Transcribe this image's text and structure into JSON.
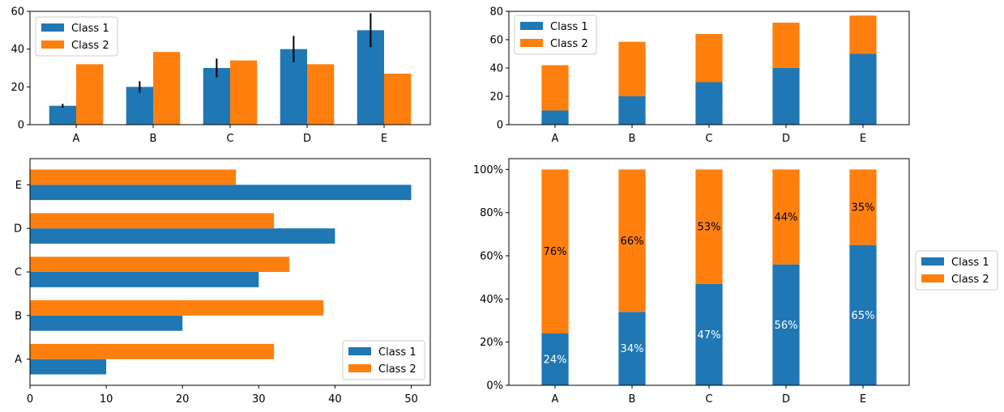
{
  "colors": {
    "class1": "#1f77b4",
    "class2": "#ff7f0e"
  },
  "chart_data": [
    {
      "id": "grouped",
      "type": "bar",
      "categories": [
        "A",
        "B",
        "C",
        "D",
        "E"
      ],
      "series": [
        {
          "name": "Class 1",
          "values": [
            10,
            20,
            30,
            40,
            50
          ],
          "error": [
            1,
            3,
            5,
            7,
            9
          ]
        },
        {
          "name": "Class 2",
          "values": [
            32,
            38.5,
            34,
            32,
            27
          ]
        }
      ],
      "ylim": [
        0,
        60
      ],
      "yticks": [
        0,
        20,
        40,
        60
      ],
      "legend": "upper-left"
    },
    {
      "id": "stacked",
      "type": "bar",
      "categories": [
        "A",
        "B",
        "C",
        "D",
        "E"
      ],
      "series": [
        {
          "name": "Class 1",
          "values": [
            10,
            20,
            30,
            40,
            50
          ]
        },
        {
          "name": "Class 2",
          "values": [
            32,
            38.5,
            34,
            32,
            27
          ]
        }
      ],
      "ylim": [
        0,
        80
      ],
      "yticks": [
        0,
        20,
        40,
        60,
        80
      ],
      "legend": "upper-left"
    },
    {
      "id": "horizontal",
      "type": "bar",
      "orientation": "horizontal",
      "categories": [
        "A",
        "B",
        "C",
        "D",
        "E"
      ],
      "series": [
        {
          "name": "Class 1",
          "values": [
            10,
            20,
            30,
            40,
            50
          ]
        },
        {
          "name": "Class 2",
          "values": [
            32,
            38.5,
            34,
            32,
            27
          ]
        }
      ],
      "xlim": [
        0,
        52.5
      ],
      "xticks": [
        0,
        10,
        20,
        30,
        40,
        50
      ],
      "legend": "lower-right"
    },
    {
      "id": "percent",
      "type": "bar",
      "categories": [
        "A",
        "B",
        "C",
        "D",
        "E"
      ],
      "series": [
        {
          "name": "Class 1",
          "values": [
            24,
            34,
            47,
            56,
            65
          ],
          "labels": [
            "24%",
            "34%",
            "47%",
            "56%",
            "65%"
          ]
        },
        {
          "name": "Class 2",
          "values": [
            76,
            66,
            53,
            44,
            35
          ],
          "labels": [
            "76%",
            "66%",
            "53%",
            "44%",
            "35%"
          ]
        }
      ],
      "ylim": [
        0,
        105
      ],
      "yticks": [
        0,
        20,
        40,
        60,
        80,
        100
      ],
      "ytick_labels": [
        "0%",
        "20%",
        "40%",
        "60%",
        "80%",
        "100%"
      ],
      "legend": "outside-right"
    }
  ]
}
